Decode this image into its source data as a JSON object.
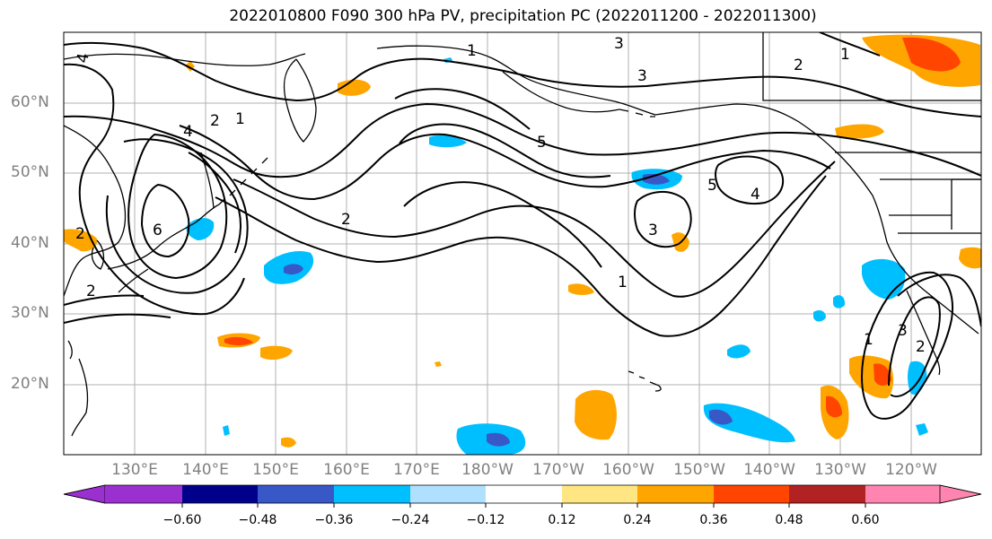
{
  "title": "2022010800 F090 300 hPa PV, precipitation PC (2022011200 - 2022011300)",
  "map": {
    "latitude_labels": [
      "60°N",
      "50°N",
      "40°N",
      "30°N",
      "20°N"
    ],
    "longitude_labels": [
      "130°E",
      "140°E",
      "150°E",
      "160°E",
      "170°E",
      "180°W",
      "170°W",
      "160°W",
      "150°W",
      "140°W",
      "130°W",
      "120°W"
    ],
    "pv_contour_labels": [
      "4",
      "3",
      "1",
      "2",
      "1",
      "3",
      "2",
      "1",
      "4",
      "2",
      "5",
      "2",
      "6",
      "5",
      "4",
      "3",
      "1",
      "2",
      "1",
      "3",
      "2"
    ]
  },
  "colorbar": {
    "tick_labels": [
      "−0.60",
      "−0.48",
      "−0.36",
      "−0.24",
      "−0.12",
      "0.12",
      "0.24",
      "0.36",
      "0.48",
      "0.60"
    ],
    "colors": [
      "#9b30d0",
      "#00008b",
      "#3858c8",
      "#00bfff",
      "#b0e0ff",
      "#ffffff",
      "#ffe682",
      "#ffa500",
      "#ff4500",
      "#b22222",
      "#ff85b0"
    ],
    "extend": "both"
  },
  "chart_data": {
    "type": "heatmap",
    "title": "2022010800 F090 300 hPa PV, precipitation PC (2022011200 - 2022011300)",
    "variables": [
      "300 hPa PV (contours)",
      "precipitation PC (shaded)"
    ],
    "pv_contour_levels": [
      1,
      2,
      3,
      4,
      5,
      6
    ],
    "color_levels": [
      -0.6,
      -0.48,
      -0.36,
      -0.24,
      -0.12,
      0.12,
      0.24,
      0.36,
      0.48,
      0.6
    ],
    "xrange": [
      "120°E",
      "115°W"
    ],
    "yrange": [
      "10°N",
      "70°N"
    ],
    "grid": true
  }
}
